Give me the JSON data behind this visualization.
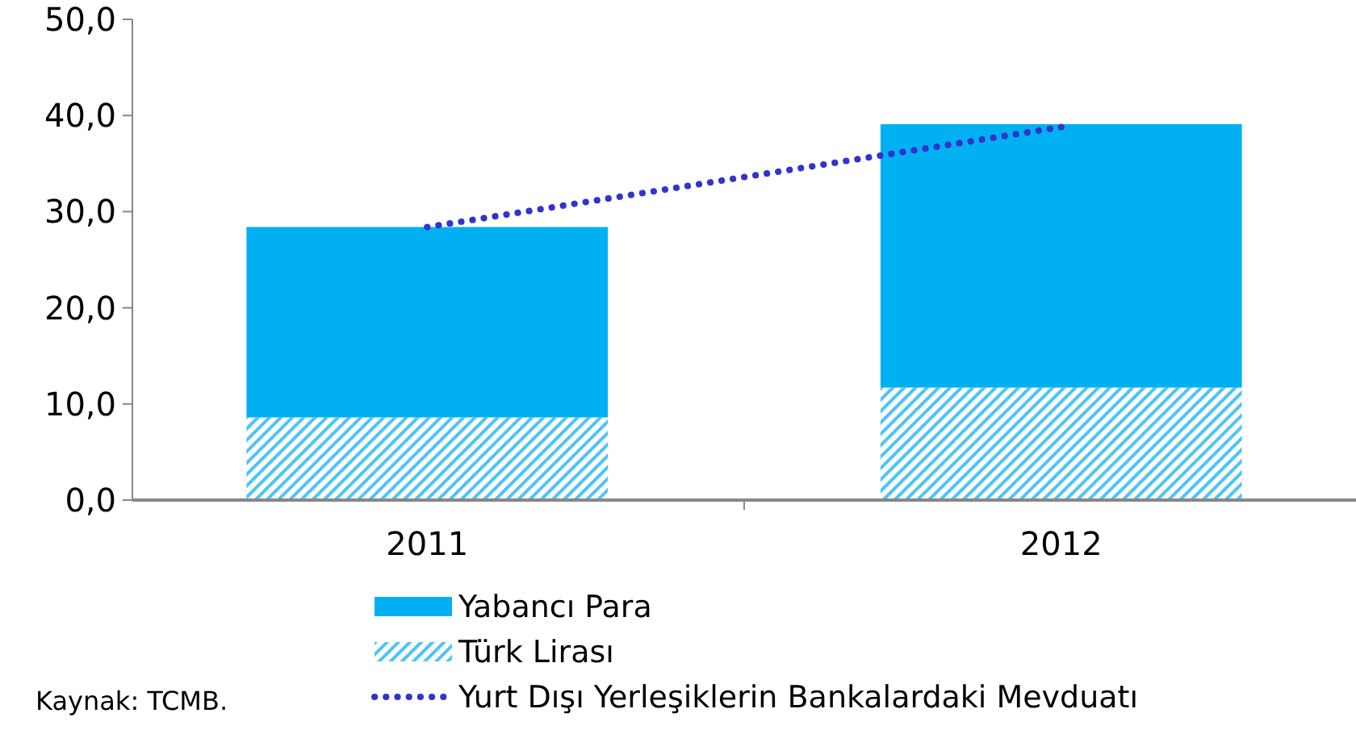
{
  "chart_data": {
    "type": "bar",
    "stacked": true,
    "categories": [
      "2011",
      "2012"
    ],
    "series": [
      {
        "name": "Türk Lirası",
        "color": "#4fc3f7",
        "values": [
          8.6,
          11.7
        ]
      },
      {
        "name": "Yabancı Para",
        "color": "#00b0f0",
        "values": [
          19.8,
          27.4
        ]
      },
      {
        "name": "Yurt Dışı Yerleşiklerin Bankalardaki Mevduatı",
        "type": "line",
        "color": "#3333cc",
        "line_style": "dotted",
        "values": [
          28.4,
          38.8
        ]
      }
    ],
    "ylim": [
      0,
      50
    ],
    "yticks": [
      {
        "value": 0,
        "label": "0,0"
      },
      {
        "value": 10,
        "label": "10,0"
      },
      {
        "value": 20,
        "label": "20,0"
      },
      {
        "value": 30,
        "label": "30,0"
      },
      {
        "value": 40,
        "label": "40,0"
      },
      {
        "value": 50,
        "label": "50,0"
      }
    ],
    "grid": false,
    "legend": "bottom",
    "annotations": [
      "Kaynak: TCMB."
    ]
  }
}
